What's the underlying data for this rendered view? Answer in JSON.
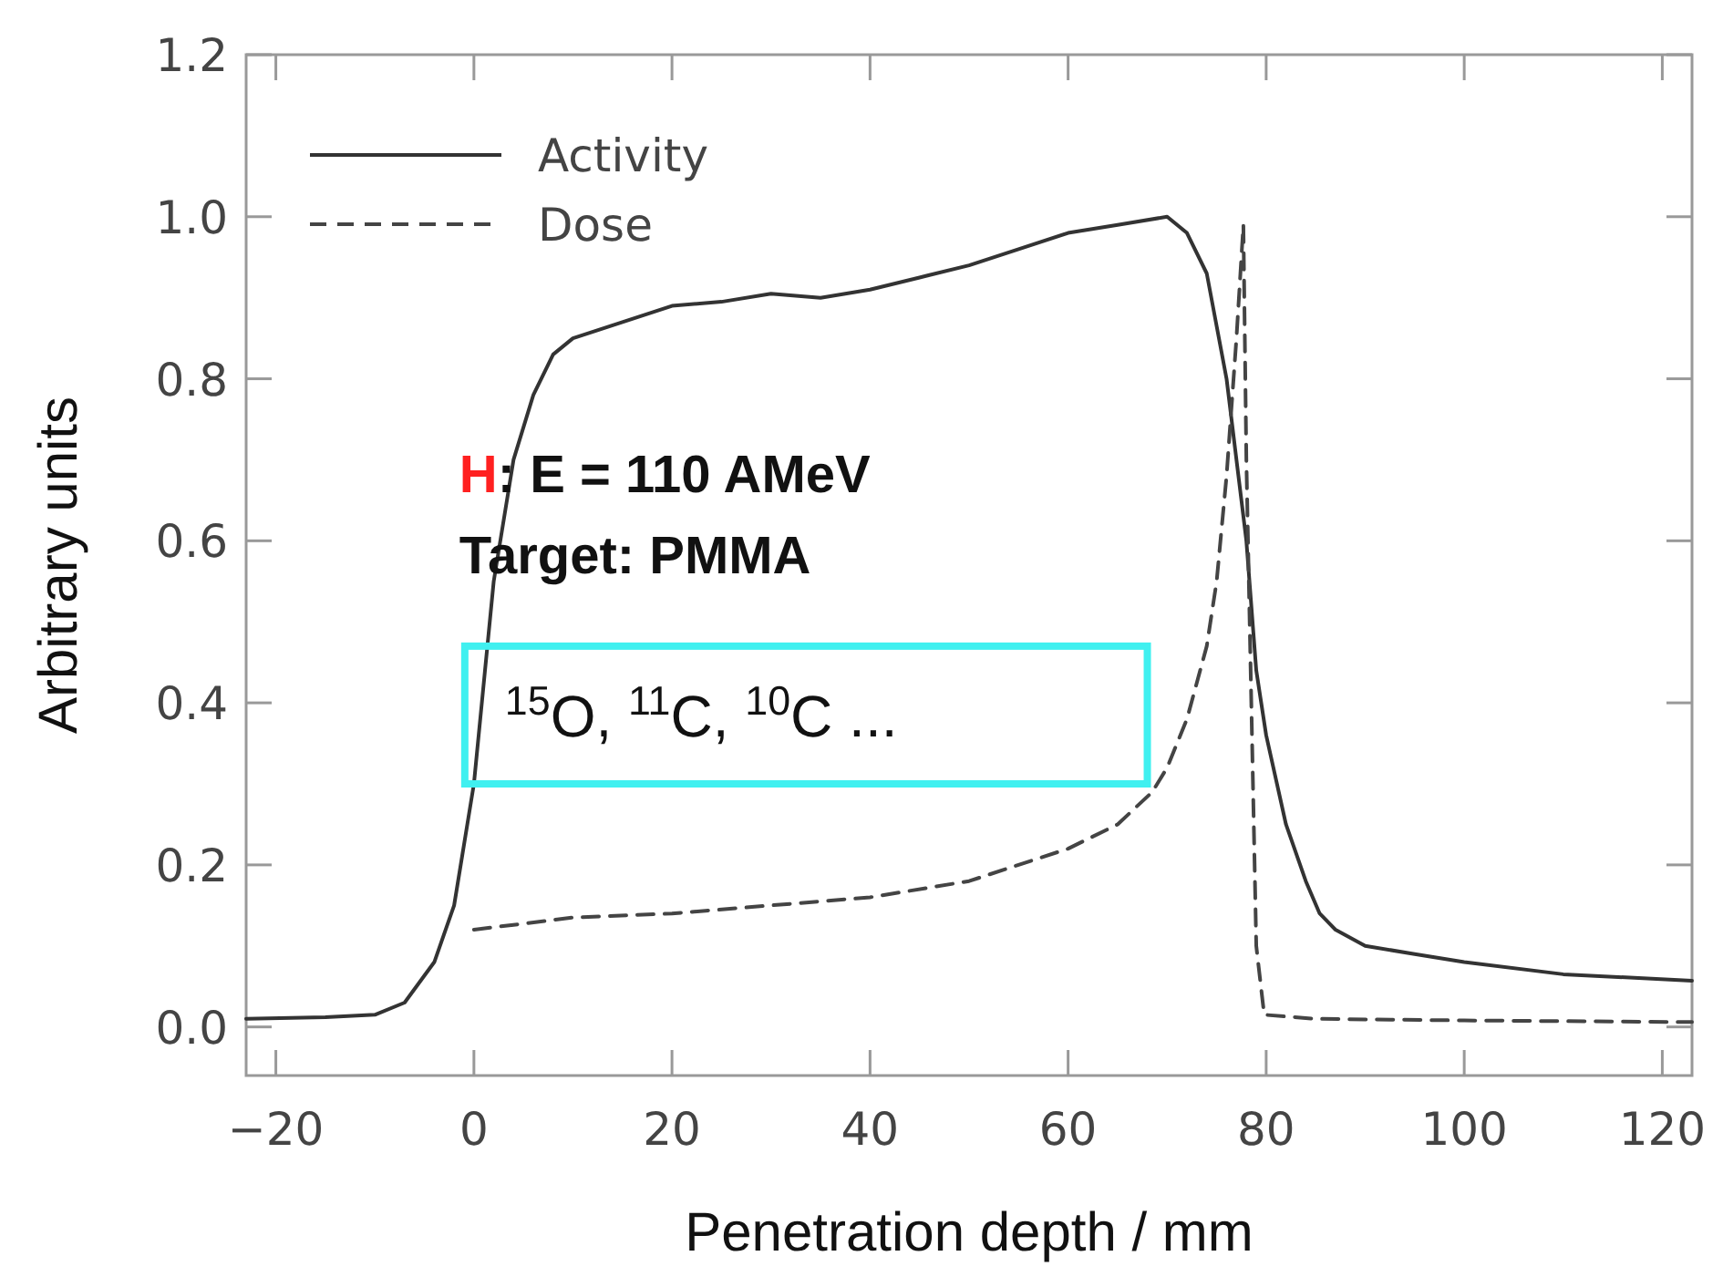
{
  "chart_data": {
    "type": "line",
    "xlabel": "Penetration depth / mm",
    "ylabel": "Arbitrary units",
    "xlim": [
      -23,
      123
    ],
    "ylim": [
      -0.06,
      1.2
    ],
    "xticks": [
      {
        "value": -20,
        "label": "−20"
      },
      0,
      20,
      40,
      60,
      80,
      100,
      120
    ],
    "yticks": [
      {
        "value": 0,
        "label": "0.0"
      },
      0.2,
      0.4,
      0.6,
      0.8,
      {
        "value": 1,
        "label": "1.0"
      },
      1.2
    ],
    "legend": "top left",
    "grid": false,
    "marker": "none",
    "series": [
      {
        "name": "Activity",
        "color": "#333333",
        "line_style": "solid",
        "x": [
          -23,
          -15,
          -10,
          -7,
          -4,
          -2,
          0,
          2,
          4,
          6,
          8,
          10,
          15,
          20,
          25,
          30,
          35,
          40,
          45,
          50,
          55,
          60,
          65,
          70,
          72,
          74,
          76,
          78,
          79,
          80,
          82,
          84,
          85.4,
          87,
          90,
          95,
          100,
          110,
          123
        ],
        "values": [
          0.01,
          0.012,
          0.015,
          0.03,
          0.08,
          0.15,
          0.3,
          0.55,
          0.7,
          0.78,
          0.83,
          0.85,
          0.87,
          0.89,
          0.895,
          0.905,
          0.9,
          0.91,
          0.925,
          0.94,
          0.96,
          0.98,
          0.99,
          1.0,
          0.98,
          0.93,
          0.8,
          0.6,
          0.44,
          0.36,
          0.25,
          0.18,
          0.14,
          0.12,
          0.1,
          0.09,
          0.08,
          0.065,
          0.057
        ]
      },
      {
        "name": "Dose",
        "color": "#444444",
        "line_style": "dashed",
        "x": [
          0,
          10,
          20,
          30,
          40,
          50,
          55,
          60,
          65,
          68.5,
          70,
          72,
          74,
          75,
          76,
          77,
          77.7,
          78,
          78.5,
          79,
          79.8,
          85,
          100,
          123
        ],
        "values": [
          0.12,
          0.135,
          0.14,
          0.15,
          0.16,
          0.18,
          0.2,
          0.22,
          0.25,
          0.29,
          0.32,
          0.38,
          0.47,
          0.55,
          0.68,
          0.85,
          0.99,
          0.7,
          0.4,
          0.1,
          0.015,
          0.01,
          0.008,
          0.006
        ]
      }
    ],
    "annotations": [
      "H:  E = 110 AMeV",
      "Target: PMMA",
      "$^{15}$O, $^{11}$C, $^{10}$C ..."
    ]
  }
}
